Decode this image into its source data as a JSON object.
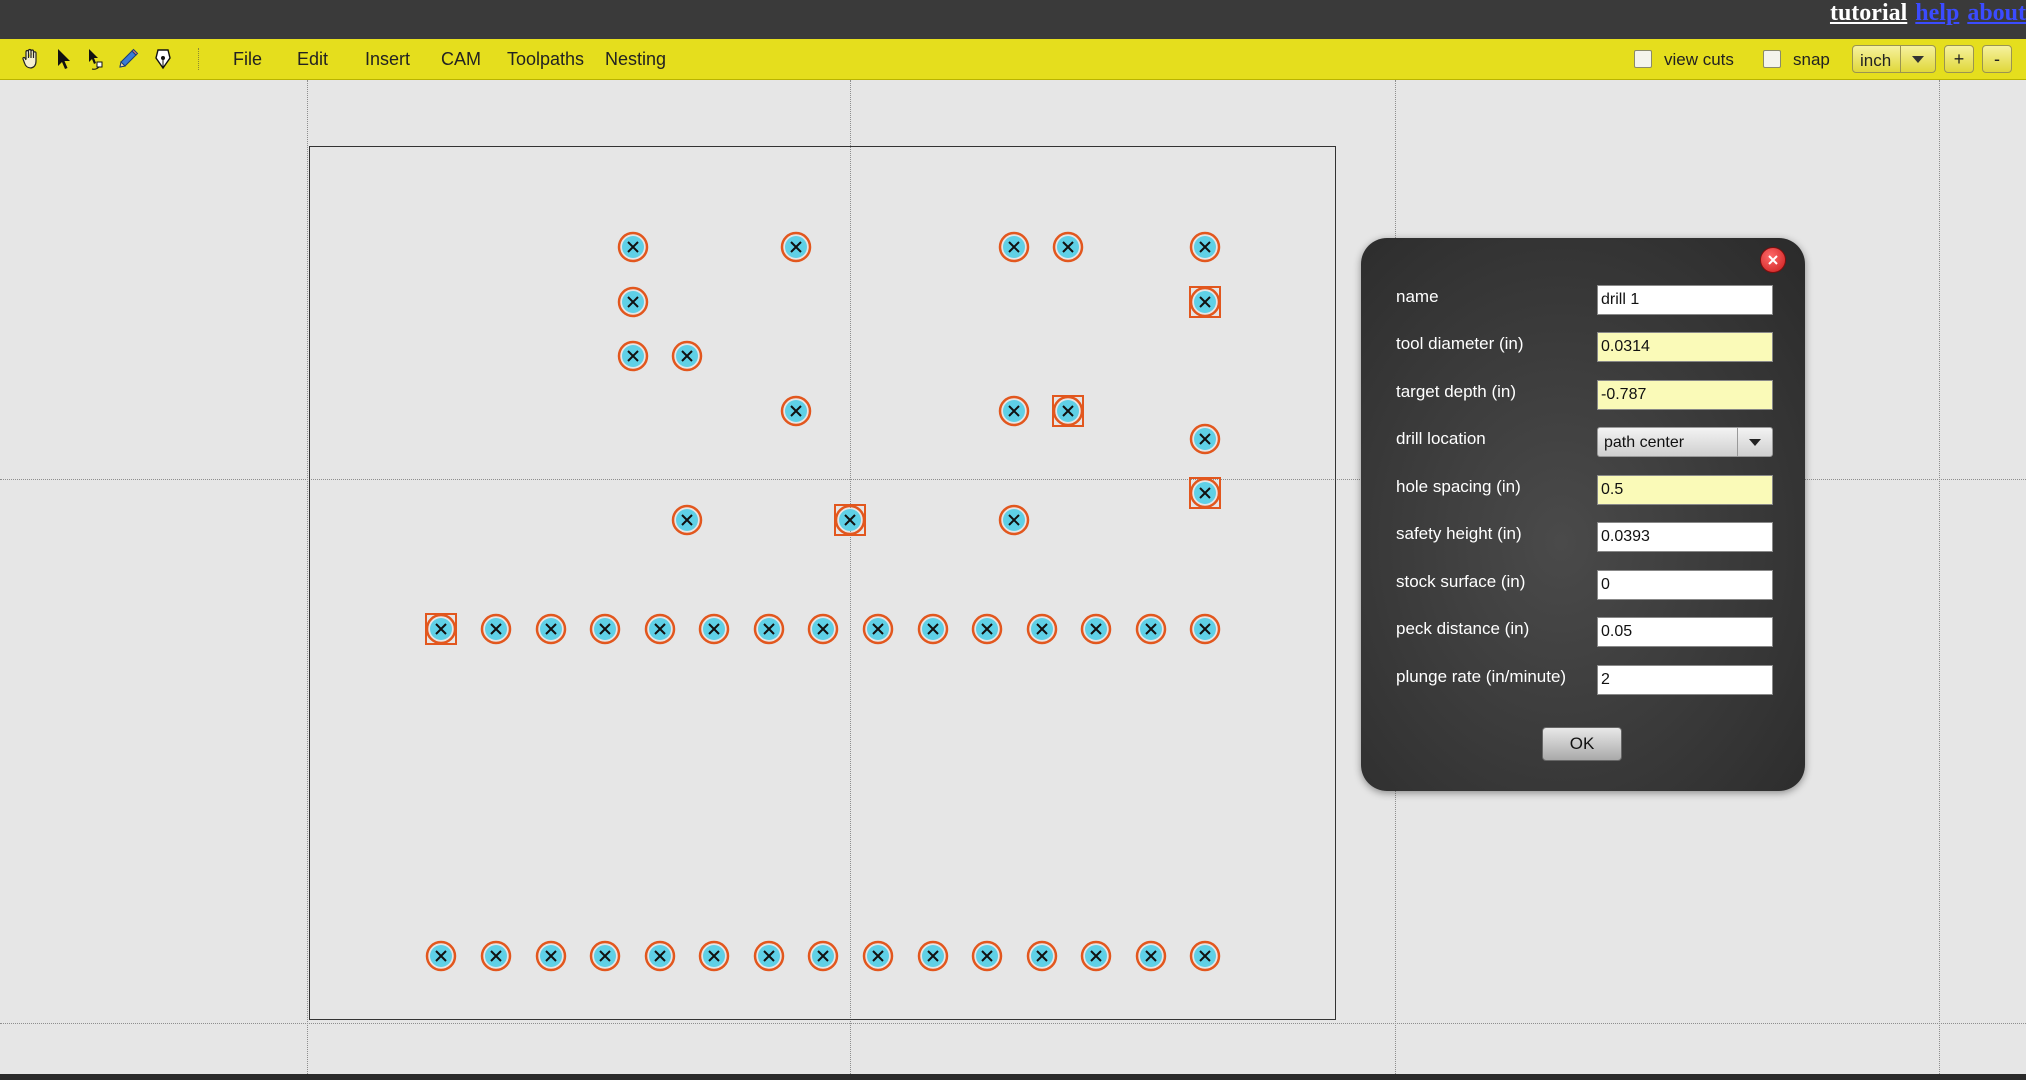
{
  "header": {
    "links": [
      {
        "label": "tutorial"
      },
      {
        "label": "help"
      },
      {
        "label": "about"
      }
    ]
  },
  "toolbar": {
    "tools": [
      "hand-icon",
      "select-arrow-icon",
      "node-edit-icon",
      "pencil-icon",
      "pen-icon"
    ],
    "menu": [
      "File",
      "Edit",
      "Insert",
      "CAM",
      "Toolpaths",
      "Nesting"
    ],
    "view_cuts_label": "view cuts",
    "view_cuts_checked": false,
    "snap_label": "snap",
    "snap_checked": false,
    "units": "inch",
    "zoom_in_label": "+",
    "zoom_out_label": "-"
  },
  "canvas": {
    "hole_count": 52,
    "selected_hole_count": 5
  },
  "dialog": {
    "fields": [
      {
        "label": "name",
        "value": "drill 1",
        "highlight": false
      },
      {
        "label": "tool diameter (in)",
        "value": "0.0314",
        "highlight": true
      },
      {
        "label": "target depth (in)",
        "value": "-0.787",
        "highlight": true
      },
      {
        "label": "drill location",
        "value": "path center",
        "type": "select"
      },
      {
        "label": "hole spacing (in)",
        "value": "0.5",
        "highlight": true
      },
      {
        "label": "safety height (in)",
        "value": "0.0393",
        "highlight": false
      },
      {
        "label": "stock surface (in)",
        "value": "0",
        "highlight": false
      },
      {
        "label": "peck distance (in)",
        "value": "0.05",
        "highlight": false
      },
      {
        "label": "plunge rate (in/minute)",
        "value": "2",
        "highlight": false
      }
    ],
    "ok_label": "OK"
  },
  "colors": {
    "toolbar_bg": "#e5de1d",
    "hole_ring": "#e2571e",
    "hole_fill": "#5fd0e6",
    "highlight_field": "#fafab8"
  }
}
